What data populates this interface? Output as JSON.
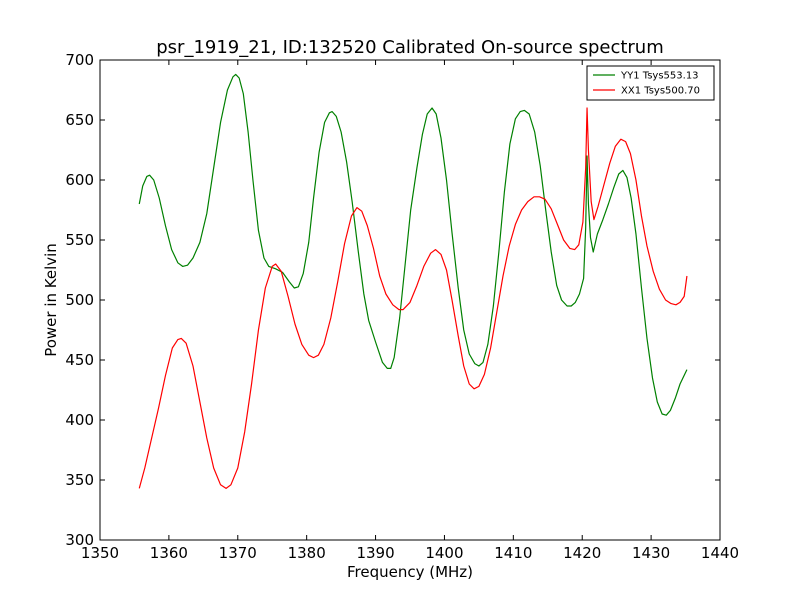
{
  "chart_data": {
    "type": "line",
    "title": "psr_1919_21, ID:132520 Calibrated On-source spectrum",
    "xlabel": "Frequency (MHz)",
    "ylabel": "Power in Kelvin",
    "xlim": [
      1350,
      1440
    ],
    "ylim": [
      300,
      700
    ],
    "xticks": [
      "1350",
      "1360",
      "1370",
      "1380",
      "1390",
      "1400",
      "1410",
      "1420",
      "1430",
      "1440"
    ],
    "yticks": [
      "300",
      "350",
      "400",
      "450",
      "500",
      "550",
      "600",
      "650",
      "700"
    ],
    "grid": false,
    "legend_position": "top-right",
    "series": [
      {
        "name": "YY1 Tsys553.13",
        "color": "#008000",
        "points": [
          [
            1355.7,
            580
          ],
          [
            1356.2,
            595
          ],
          [
            1356.8,
            603
          ],
          [
            1357.2,
            604
          ],
          [
            1357.8,
            600
          ],
          [
            1358.6,
            585
          ],
          [
            1359.5,
            562
          ],
          [
            1360.4,
            542
          ],
          [
            1361.3,
            531
          ],
          [
            1362.0,
            528
          ],
          [
            1362.7,
            529
          ],
          [
            1363.5,
            535
          ],
          [
            1364.5,
            548
          ],
          [
            1365.5,
            572
          ],
          [
            1366.5,
            610
          ],
          [
            1367.5,
            648
          ],
          [
            1368.5,
            675
          ],
          [
            1369.3,
            686
          ],
          [
            1369.7,
            688
          ],
          [
            1370.2,
            685
          ],
          [
            1370.8,
            672
          ],
          [
            1371.5,
            640
          ],
          [
            1372.2,
            600
          ],
          [
            1373.0,
            558
          ],
          [
            1373.8,
            535
          ],
          [
            1374.5,
            528
          ],
          [
            1375.5,
            526
          ],
          [
            1376.5,
            523
          ],
          [
            1377.5,
            515
          ],
          [
            1378.2,
            510
          ],
          [
            1378.8,
            511
          ],
          [
            1379.5,
            522
          ],
          [
            1380.3,
            548
          ],
          [
            1381.0,
            585
          ],
          [
            1381.8,
            623
          ],
          [
            1382.6,
            648
          ],
          [
            1383.3,
            656
          ],
          [
            1383.7,
            657
          ],
          [
            1384.3,
            653
          ],
          [
            1385.0,
            640
          ],
          [
            1385.8,
            615
          ],
          [
            1386.6,
            582
          ],
          [
            1387.5,
            540
          ],
          [
            1388.3,
            505
          ],
          [
            1389.0,
            483
          ],
          [
            1390.0,
            465
          ],
          [
            1391.0,
            448
          ],
          [
            1391.7,
            443
          ],
          [
            1392.2,
            443
          ],
          [
            1392.7,
            452
          ],
          [
            1393.5,
            485
          ],
          [
            1394.3,
            530
          ],
          [
            1395.1,
            575
          ],
          [
            1396.0,
            610
          ],
          [
            1396.8,
            638
          ],
          [
            1397.5,
            655
          ],
          [
            1398.2,
            660
          ],
          [
            1398.8,
            655
          ],
          [
            1399.5,
            635
          ],
          [
            1400.3,
            600
          ],
          [
            1401.1,
            556
          ],
          [
            1402.0,
            510
          ],
          [
            1402.8,
            475
          ],
          [
            1403.6,
            455
          ],
          [
            1404.4,
            447
          ],
          [
            1405.0,
            445
          ],
          [
            1405.6,
            448
          ],
          [
            1406.3,
            463
          ],
          [
            1407.1,
            495
          ],
          [
            1407.9,
            540
          ],
          [
            1408.7,
            590
          ],
          [
            1409.5,
            630
          ],
          [
            1410.3,
            651
          ],
          [
            1411.0,
            657
          ],
          [
            1411.6,
            658
          ],
          [
            1412.3,
            655
          ],
          [
            1413.1,
            640
          ],
          [
            1413.9,
            612
          ],
          [
            1414.7,
            575
          ],
          [
            1415.5,
            540
          ],
          [
            1416.3,
            512
          ],
          [
            1417.0,
            500
          ],
          [
            1417.8,
            495
          ],
          [
            1418.4,
            495
          ],
          [
            1419.0,
            498
          ],
          [
            1419.6,
            505
          ],
          [
            1420.2,
            518
          ],
          [
            1420.5,
            560
          ],
          [
            1420.7,
            620
          ],
          [
            1420.9,
            580
          ],
          [
            1421.2,
            552
          ],
          [
            1421.6,
            540
          ],
          [
            1422.2,
            555
          ],
          [
            1423.0,
            567
          ],
          [
            1423.8,
            580
          ],
          [
            1424.6,
            594
          ],
          [
            1425.3,
            605
          ],
          [
            1425.9,
            608
          ],
          [
            1426.5,
            602
          ],
          [
            1427.1,
            585
          ],
          [
            1427.8,
            555
          ],
          [
            1428.6,
            510
          ],
          [
            1429.4,
            468
          ],
          [
            1430.2,
            435
          ],
          [
            1430.9,
            415
          ],
          [
            1431.6,
            405
          ],
          [
            1432.2,
            404
          ],
          [
            1432.8,
            408
          ],
          [
            1433.5,
            418
          ],
          [
            1434.2,
            430
          ],
          [
            1435.2,
            442
          ]
        ]
      },
      {
        "name": "XX1 Tsys500.70",
        "color": "#ff0000",
        "points": [
          [
            1355.7,
            343
          ],
          [
            1356.5,
            360
          ],
          [
            1357.5,
            385
          ],
          [
            1358.5,
            410
          ],
          [
            1359.5,
            437
          ],
          [
            1360.5,
            460
          ],
          [
            1361.3,
            467
          ],
          [
            1361.8,
            468
          ],
          [
            1362.5,
            464
          ],
          [
            1363.5,
            445
          ],
          [
            1364.5,
            415
          ],
          [
            1365.5,
            385
          ],
          [
            1366.5,
            360
          ],
          [
            1367.5,
            346
          ],
          [
            1368.3,
            343
          ],
          [
            1369.0,
            346
          ],
          [
            1370.0,
            360
          ],
          [
            1371.0,
            390
          ],
          [
            1372.0,
            430
          ],
          [
            1373.0,
            475
          ],
          [
            1374.0,
            510
          ],
          [
            1375.0,
            528
          ],
          [
            1375.5,
            530
          ],
          [
            1376.3,
            524
          ],
          [
            1377.3,
            503
          ],
          [
            1378.3,
            480
          ],
          [
            1379.3,
            463
          ],
          [
            1380.3,
            454
          ],
          [
            1381.0,
            452
          ],
          [
            1381.7,
            454
          ],
          [
            1382.5,
            463
          ],
          [
            1383.5,
            485
          ],
          [
            1384.5,
            515
          ],
          [
            1385.5,
            547
          ],
          [
            1386.5,
            570
          ],
          [
            1387.3,
            577
          ],
          [
            1388.0,
            574
          ],
          [
            1388.8,
            562
          ],
          [
            1389.7,
            543
          ],
          [
            1390.6,
            520
          ],
          [
            1391.5,
            505
          ],
          [
            1392.5,
            496
          ],
          [
            1393.4,
            492
          ],
          [
            1394.0,
            492
          ],
          [
            1395.0,
            498
          ],
          [
            1396.0,
            512
          ],
          [
            1397.0,
            528
          ],
          [
            1398.0,
            539
          ],
          [
            1398.7,
            542
          ],
          [
            1399.5,
            538
          ],
          [
            1400.3,
            525
          ],
          [
            1401.1,
            500
          ],
          [
            1402.0,
            470
          ],
          [
            1402.8,
            445
          ],
          [
            1403.6,
            430
          ],
          [
            1404.3,
            426
          ],
          [
            1405.0,
            428
          ],
          [
            1405.8,
            438
          ],
          [
            1406.7,
            460
          ],
          [
            1407.6,
            490
          ],
          [
            1408.5,
            520
          ],
          [
            1409.4,
            545
          ],
          [
            1410.3,
            563
          ],
          [
            1411.2,
            575
          ],
          [
            1412.1,
            582
          ],
          [
            1413.0,
            586
          ],
          [
            1413.8,
            586
          ],
          [
            1414.6,
            584
          ],
          [
            1415.5,
            576
          ],
          [
            1416.4,
            563
          ],
          [
            1417.3,
            550
          ],
          [
            1418.2,
            543
          ],
          [
            1418.9,
            542
          ],
          [
            1419.5,
            546
          ],
          [
            1420.1,
            565
          ],
          [
            1420.5,
            610
          ],
          [
            1420.7,
            660
          ],
          [
            1420.9,
            625
          ],
          [
            1421.3,
            582
          ],
          [
            1421.7,
            567
          ],
          [
            1422.3,
            578
          ],
          [
            1423.1,
            595
          ],
          [
            1424.0,
            614
          ],
          [
            1424.8,
            628
          ],
          [
            1425.6,
            634
          ],
          [
            1426.3,
            632
          ],
          [
            1427.0,
            622
          ],
          [
            1427.8,
            600
          ],
          [
            1428.6,
            570
          ],
          [
            1429.4,
            545
          ],
          [
            1430.3,
            524
          ],
          [
            1431.2,
            509
          ],
          [
            1432.1,
            500
          ],
          [
            1432.9,
            497
          ],
          [
            1433.6,
            496
          ],
          [
            1434.2,
            498
          ],
          [
            1434.8,
            503
          ],
          [
            1435.2,
            520
          ]
        ]
      }
    ]
  }
}
